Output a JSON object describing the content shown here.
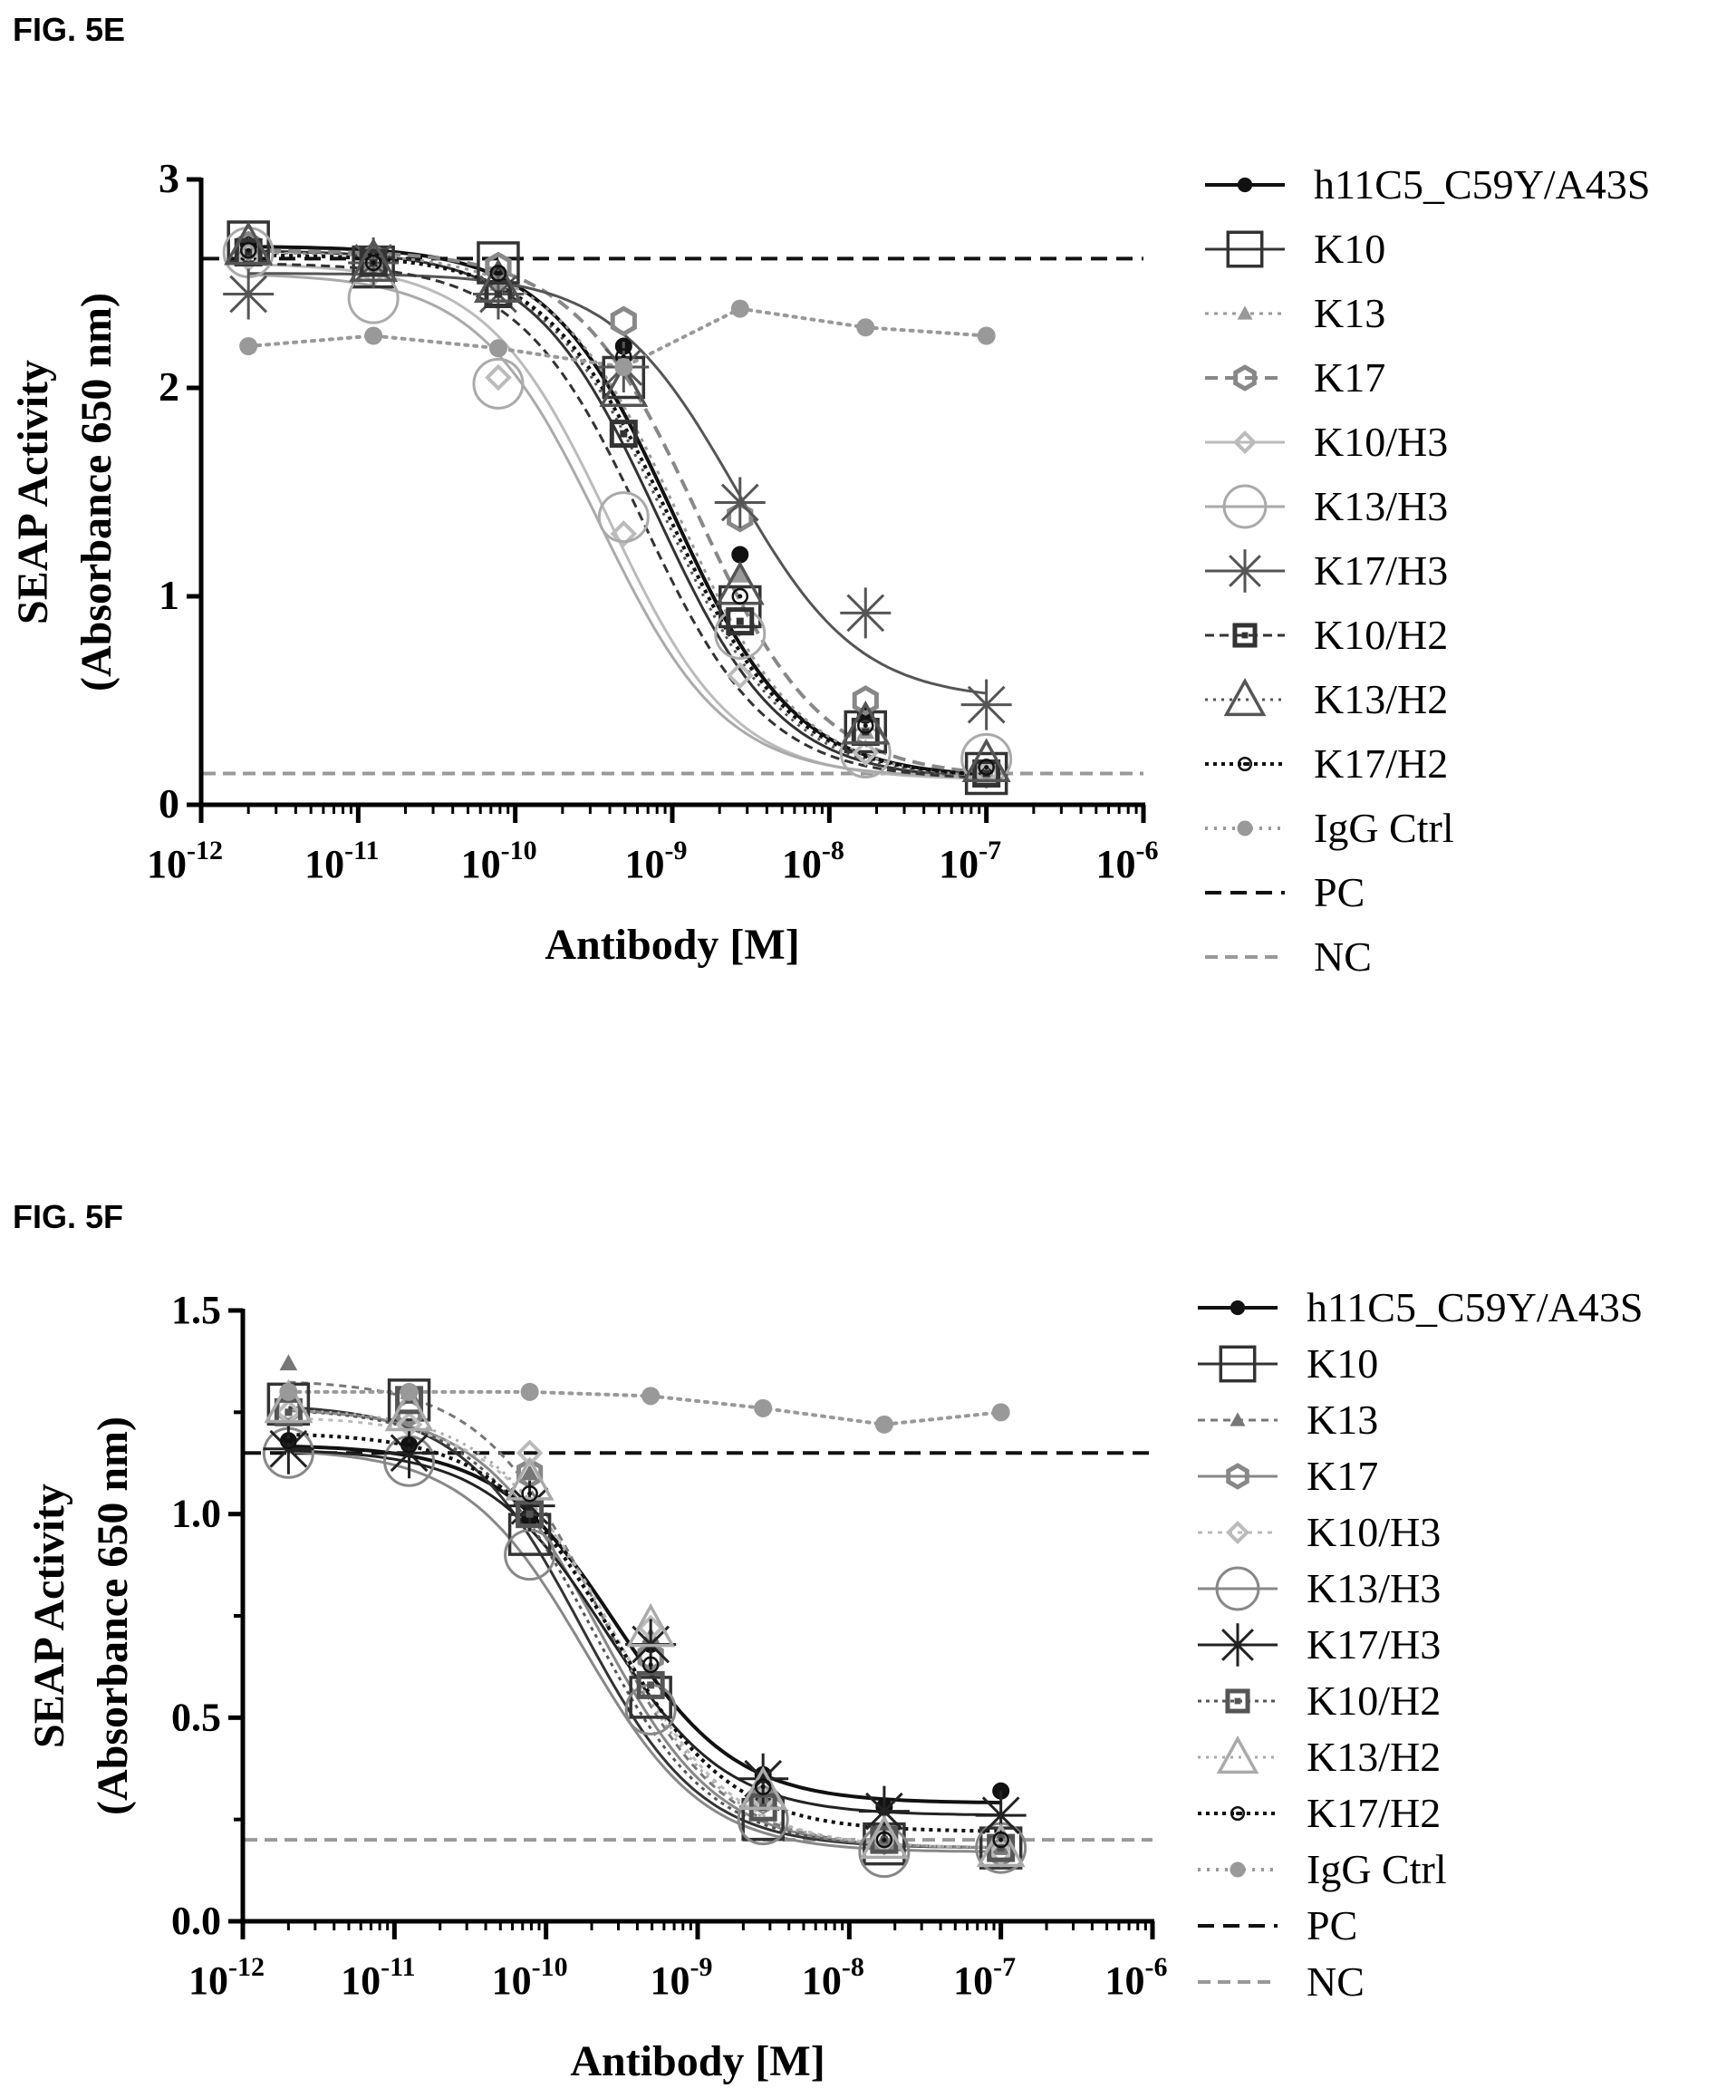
{
  "figures": [
    {
      "label": "FIG. 5E"
    },
    {
      "label": "FIG. 5F"
    }
  ],
  "chart_data": [
    {
      "type": "line",
      "title": "",
      "xlabel": "Antibody [M]",
      "ylabel_line1": "SEAP Activity",
      "ylabel_line2": "(Absorbance 650 nm)",
      "x_scale": "log",
      "xlim": [
        1e-12,
        1e-06
      ],
      "ylim": [
        0,
        3
      ],
      "x_ticks": [
        {
          "base": "10",
          "exp": "-12"
        },
        {
          "base": "10",
          "exp": "-11"
        },
        {
          "base": "10",
          "exp": "-10"
        },
        {
          "base": "10",
          "exp": "-9"
        },
        {
          "base": "10",
          "exp": "-8"
        },
        {
          "base": "10",
          "exp": "-7"
        },
        {
          "base": "10",
          "exp": "-6"
        }
      ],
      "y_ticks": [
        {
          "v": 0,
          "label": "0"
        },
        {
          "v": 1,
          "label": "1"
        },
        {
          "v": 2,
          "label": "2"
        },
        {
          "v": 3,
          "label": "3"
        }
      ],
      "legend_position": "right",
      "x": [
        2e-12,
        1.25e-11,
        7.8e-11,
        4.9e-10,
        2.7e-09,
        1.7e-08,
        1e-07
      ],
      "series": [
        {
          "name": "h11C5_C59Y/A43S",
          "marker": "dot",
          "color": "#111111",
          "dash": "",
          "width": 4,
          "values": [
            2.69,
            2.65,
            2.55,
            2.2,
            1.2,
            0.43,
            0.18
          ],
          "fit": {
            "top": 2.68,
            "bottom": 0.13,
            "ec50": 1e-09,
            "hill": 1.1
          }
        },
        {
          "name": "K10",
          "marker": "square",
          "color": "#333333",
          "dash": "",
          "width": 3,
          "values": [
            2.7,
            2.58,
            2.6,
            2.05,
            0.95,
            0.35,
            0.15
          ],
          "fit": {
            "top": 2.66,
            "bottom": 0.12,
            "ec50": 8e-10,
            "hill": 1.1
          }
        },
        {
          "name": "K13",
          "marker": "triangle-small",
          "color": "#999999",
          "dash": "4,6",
          "width": 3,
          "values": [
            2.68,
            2.6,
            2.5,
            2.1,
            1.1,
            0.35,
            0.15
          ],
          "fit": {
            "top": 2.65,
            "bottom": 0.12,
            "ec50": 1.1e-09,
            "hill": 1.1
          }
        },
        {
          "name": "K17",
          "marker": "hexagon",
          "color": "#888888",
          "dash": "14,8",
          "width": 4,
          "values": [
            2.68,
            2.62,
            2.58,
            2.32,
            1.38,
            0.5,
            0.15
          ],
          "fit": {
            "top": 2.66,
            "bottom": 0.13,
            "ec50": 1.45e-09,
            "hill": 1.1
          }
        },
        {
          "name": "K10/H3",
          "marker": "diamond",
          "color": "#bbbbbb",
          "dash": "",
          "width": 3,
          "values": [
            2.62,
            2.55,
            2.05,
            1.3,
            0.62,
            0.25,
            0.15
          ],
          "fit": {
            "top": 2.6,
            "bottom": 0.12,
            "ec50": 4e-10,
            "hill": 1.1
          }
        },
        {
          "name": "K13/H3",
          "marker": "circle-large",
          "color": "#aaaaaa",
          "dash": "",
          "width": 3,
          "values": [
            2.65,
            2.43,
            2.02,
            1.38,
            0.82,
            0.25,
            0.22
          ],
          "fit": {
            "top": 2.55,
            "bottom": 0.13,
            "ec50": 3.5e-10,
            "hill": 1.1
          }
        },
        {
          "name": "K17/H3",
          "marker": "asterisk",
          "color": "#555555",
          "dash": "",
          "width": 3,
          "values": [
            2.45,
            2.6,
            2.45,
            2.1,
            1.45,
            0.92,
            0.48
          ],
          "fit": {
            "top": 2.55,
            "bottom": 0.5,
            "ec50": 2.5e-09,
            "hill": 1.1
          }
        },
        {
          "name": "K10/H2",
          "marker": "square-small",
          "color": "#333333",
          "dash": "10,6",
          "width": 3,
          "values": [
            2.65,
            2.6,
            2.45,
            1.78,
            0.88,
            0.35,
            0.15
          ],
          "fit": {
            "top": 2.6,
            "bottom": 0.12,
            "ec50": 6.5e-10,
            "hill": 1.1
          }
        },
        {
          "name": "K13/H2",
          "marker": "triangle",
          "color": "#555555",
          "dash": "3,6",
          "width": 3,
          "values": [
            2.68,
            2.6,
            2.5,
            2.0,
            1.05,
            0.38,
            0.2
          ],
          "fit": {
            "top": 2.64,
            "bottom": 0.12,
            "ec50": 9e-10,
            "hill": 1.1
          }
        },
        {
          "name": "K17/H2",
          "marker": "circle-dot",
          "color": "#111111",
          "dash": "4,5",
          "width": 4,
          "values": [
            2.66,
            2.6,
            2.55,
            2.15,
            1.0,
            0.38,
            0.18
          ],
          "fit": {
            "top": 2.64,
            "bottom": 0.13,
            "ec50": 9.5e-10,
            "hill": 1.1
          }
        },
        {
          "name": "IgG Ctrl",
          "marker": "dot-gray",
          "color": "#999999",
          "dash": "3,7",
          "width": 4,
          "values": [
            2.2,
            2.25,
            2.19,
            2.1,
            2.38,
            2.29,
            2.25
          ],
          "fit": null
        },
        {
          "name": "PC",
          "marker": "none",
          "color": "#111111",
          "dash": "18,10",
          "width": 4,
          "constant": 2.62
        },
        {
          "name": "NC",
          "marker": "none",
          "color": "#999999",
          "dash": "14,8",
          "width": 4,
          "constant": 0.15
        }
      ]
    },
    {
      "type": "line",
      "title": "",
      "xlabel": "Antibody [M]",
      "ylabel_line1": "SEAP Activity",
      "ylabel_line2": "(Absorbance 650 nm)",
      "x_scale": "log",
      "xlim": [
        1e-12,
        1e-06
      ],
      "ylim": [
        0,
        1.5
      ],
      "x_ticks": [
        {
          "base": "10",
          "exp": "-12"
        },
        {
          "base": "10",
          "exp": "-11"
        },
        {
          "base": "10",
          "exp": "-10"
        },
        {
          "base": "10",
          "exp": "-9"
        },
        {
          "base": "10",
          "exp": "-8"
        },
        {
          "base": "10",
          "exp": "-7"
        },
        {
          "base": "10",
          "exp": "-6"
        }
      ],
      "y_ticks": [
        {
          "v": 0,
          "label": "0.0"
        },
        {
          "v": 0.5,
          "label": "0.5"
        },
        {
          "v": 1.0,
          "label": "1.0"
        },
        {
          "v": 1.5,
          "label": "1.5"
        }
      ],
      "legend_position": "right",
      "x": [
        2e-12,
        1.25e-11,
        7.8e-11,
        4.9e-10,
        2.7e-09,
        1.7e-08,
        1e-07
      ],
      "series": [
        {
          "name": "h11C5_C59Y/A43S",
          "marker": "dot",
          "color": "#111111",
          "dash": "",
          "width": 4,
          "values": [
            1.18,
            1.17,
            0.99,
            0.68,
            0.36,
            0.28,
            0.32
          ],
          "fit": {
            "top": 1.17,
            "bottom": 0.29,
            "ec50": 2.9e-10,
            "hill": 1.1
          }
        },
        {
          "name": "K10",
          "marker": "square",
          "color": "#333333",
          "dash": "",
          "width": 3,
          "values": [
            1.27,
            1.28,
            0.95,
            0.55,
            0.25,
            0.19,
            0.18
          ],
          "fit": {
            "top": 1.27,
            "bottom": 0.18,
            "ec50": 1.7e-10,
            "hill": 1.1
          }
        },
        {
          "name": "K13",
          "marker": "triangle-small",
          "color": "#777777",
          "dash": "8,6",
          "width": 3,
          "values": [
            1.37,
            1.3,
            1.1,
            0.7,
            0.3,
            0.2,
            0.18
          ],
          "fit": {
            "top": 1.33,
            "bottom": 0.18,
            "ec50": 2.3e-10,
            "hill": 1.1
          }
        },
        {
          "name": "K17",
          "marker": "hexagon",
          "color": "#888888",
          "dash": "",
          "width": 3,
          "values": [
            1.26,
            1.25,
            1.1,
            0.65,
            0.3,
            0.2,
            0.17
          ],
          "fit": {
            "top": 1.26,
            "bottom": 0.18,
            "ec50": 2.2e-10,
            "hill": 1.1
          }
        },
        {
          "name": "K10/H3",
          "marker": "diamond",
          "color": "#bbbbbb",
          "dash": "5,6",
          "width": 3,
          "values": [
            1.25,
            1.22,
            1.15,
            0.72,
            0.3,
            0.2,
            0.17
          ],
          "fit": {
            "top": 1.24,
            "bottom": 0.18,
            "ec50": 2.8e-10,
            "hill": 1.1
          }
        },
        {
          "name": "K13/H3",
          "marker": "circle-large",
          "color": "#888888",
          "dash": "",
          "width": 3,
          "values": [
            1.15,
            1.13,
            0.9,
            0.52,
            0.25,
            0.17,
            0.18
          ],
          "fit": {
            "top": 1.16,
            "bottom": 0.17,
            "ec50": 1.8e-10,
            "hill": 1.1
          }
        },
        {
          "name": "K17/H3",
          "marker": "asterisk",
          "color": "#222222",
          "dash": "",
          "width": 3,
          "values": [
            1.16,
            1.15,
            1.02,
            0.68,
            0.35,
            0.27,
            0.26
          ],
          "fit": {
            "top": 1.16,
            "bottom": 0.26,
            "ec50": 2.5e-10,
            "hill": 1.1
          }
        },
        {
          "name": "K10/H2",
          "marker": "square-small",
          "color": "#555555",
          "dash": "4,5",
          "width": 3,
          "values": [
            1.25,
            1.28,
            1.0,
            0.58,
            0.28,
            0.2,
            0.18
          ],
          "fit": {
            "top": 1.26,
            "bottom": 0.18,
            "ec50": 2e-10,
            "hill": 1.1
          }
        },
        {
          "name": "K13/H2",
          "marker": "triangle",
          "color": "#aaaaaa",
          "dash": "3,6",
          "width": 3,
          "values": [
            1.27,
            1.25,
            1.08,
            0.72,
            0.32,
            0.2,
            0.18
          ],
          "fit": {
            "top": 1.26,
            "bottom": 0.18,
            "ec50": 2.6e-10,
            "hill": 1.1
          }
        },
        {
          "name": "K17/H2",
          "marker": "circle-dot",
          "color": "#111111",
          "dash": "4,5",
          "width": 4,
          "values": [
            1.18,
            1.17,
            1.05,
            0.63,
            0.33,
            0.2,
            0.2
          ],
          "fit": {
            "top": 1.2,
            "bottom": 0.22,
            "ec50": 2.7e-10,
            "hill": 1.1
          }
        },
        {
          "name": "IgG Ctrl",
          "marker": "dot-gray",
          "color": "#999999",
          "dash": "3,7",
          "width": 4,
          "values": [
            1.3,
            1.3,
            1.3,
            1.29,
            1.26,
            1.22,
            1.25
          ],
          "fit": null
        },
        {
          "name": "PC",
          "marker": "none",
          "color": "#111111",
          "dash": "18,10",
          "width": 4,
          "constant": 1.15
        },
        {
          "name": "NC",
          "marker": "none",
          "color": "#999999",
          "dash": "14,8",
          "width": 4,
          "constant": 0.2
        }
      ]
    }
  ]
}
